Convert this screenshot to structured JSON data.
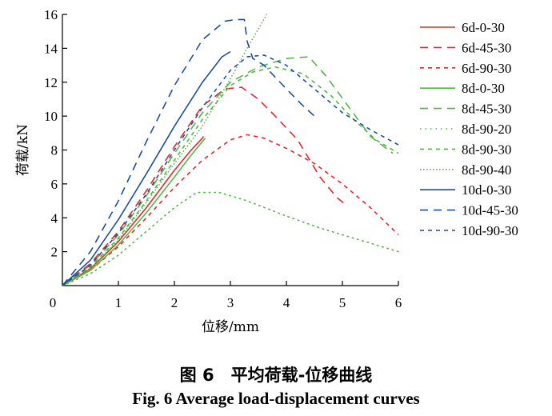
{
  "chart_data": {
    "type": "line",
    "title": "",
    "xlabel": "位移/mm",
    "ylabel": "荷载/kN",
    "xlim": [
      0,
      6
    ],
    "ylim": [
      0,
      16
    ],
    "xticks": [
      0,
      1,
      2,
      3,
      4,
      5,
      6
    ],
    "yticks": [
      2,
      4,
      6,
      8,
      10,
      12,
      14,
      16
    ],
    "legend_position": "right",
    "series": [
      {
        "name": "6d-0-30",
        "color": "#e8262b",
        "dash": "solid",
        "x": [
          0,
          0.5,
          1,
          1.5,
          2,
          2.3,
          2.5,
          2.52
        ],
        "y": [
          0,
          1.0,
          2.6,
          4.6,
          6.8,
          8.0,
          8.7,
          8.8
        ]
      },
      {
        "name": "6d-45-30",
        "color": "#e8262b",
        "dash": "long",
        "x": [
          0,
          0.5,
          1,
          1.5,
          2,
          2.5,
          2.9,
          3.2,
          3.5,
          3.8,
          4.2,
          4.6,
          4.9,
          5.05,
          5.1
        ],
        "y": [
          0,
          1.3,
          3.2,
          5.6,
          8.2,
          10.6,
          11.6,
          11.7,
          11.0,
          10.0,
          8.6,
          6.4,
          5.2,
          4.8,
          4.7
        ]
      },
      {
        "name": "6d-90-30",
        "color": "#e8262b",
        "dash": "short",
        "x": [
          0,
          0.5,
          1,
          1.5,
          2,
          2.5,
          3,
          3.3,
          3.6,
          4,
          4.5,
          5,
          5.5,
          6
        ],
        "y": [
          0,
          0.9,
          2.3,
          4.0,
          5.8,
          7.4,
          8.6,
          8.9,
          8.7,
          8.1,
          7.2,
          6.0,
          4.6,
          3.0
        ]
      },
      {
        "name": "8d-0-30",
        "color": "#55b748",
        "dash": "solid",
        "x": [
          0,
          0.5,
          1,
          1.5,
          2,
          2.3,
          2.5,
          2.55
        ],
        "y": [
          0,
          0.9,
          2.4,
          4.3,
          6.4,
          7.7,
          8.5,
          8.7
        ]
      },
      {
        "name": "8d-45-30",
        "color": "#55b748",
        "dash": "long",
        "x": [
          0,
          0.5,
          1,
          1.5,
          2,
          2.5,
          3,
          3.5,
          4,
          4.4,
          4.7,
          5.1,
          5.5,
          5.9
        ],
        "y": [
          0,
          1.2,
          3.0,
          5.3,
          7.8,
          10.2,
          12.0,
          12.9,
          13.4,
          13.5,
          12.4,
          10.6,
          8.8,
          7.8
        ]
      },
      {
        "name": "8d-90-20",
        "color": "#55b748",
        "dash": "dot",
        "x": [
          0,
          0.5,
          1,
          1.5,
          2,
          2.4,
          2.8,
          3.3,
          4,
          4.6,
          5.2,
          5.6,
          6
        ],
        "y": [
          0,
          0.7,
          1.8,
          3.2,
          4.6,
          5.5,
          5.5,
          5.0,
          4.1,
          3.4,
          2.8,
          2.4,
          2.0
        ]
      },
      {
        "name": "8d-90-30",
        "color": "#55b748",
        "dash": "short",
        "x": [
          0,
          0.5,
          1,
          1.5,
          2,
          2.5,
          3,
          3.4,
          3.8,
          4.3,
          4.8,
          5.2,
          5.6,
          6
        ],
        "y": [
          0,
          1.1,
          2.8,
          5.0,
          7.4,
          9.8,
          11.8,
          12.6,
          12.9,
          12.5,
          11.2,
          9.8,
          8.6,
          7.8
        ]
      },
      {
        "name": "8d-90-40",
        "color": "#55b748",
        "dash": "dense",
        "x": [
          0,
          0.5,
          1,
          1.5,
          2,
          2.5,
          3,
          3.3,
          3.65
        ],
        "y": [
          0,
          1.0,
          2.7,
          4.9,
          7.2,
          9.4,
          12.2,
          14.0,
          16.0
        ]
      },
      {
        "name": "10d-0-30",
        "color": "#1f4e9c",
        "dash": "solid",
        "x": [
          0,
          0.5,
          1,
          1.5,
          2,
          2.5,
          2.85,
          3.0
        ],
        "y": [
          0,
          1.5,
          3.9,
          6.6,
          9.4,
          12.0,
          13.5,
          13.8
        ]
      },
      {
        "name": "10d-45-30",
        "color": "#1f4e9c",
        "dash": "long",
        "x": [
          0,
          0.5,
          1,
          1.5,
          2,
          2.5,
          2.9,
          3.1,
          3.25,
          3.3,
          3.4,
          3.6,
          4,
          4.3,
          4.5
        ],
        "y": [
          0,
          2.0,
          5.0,
          8.5,
          11.8,
          14.5,
          15.6,
          15.7,
          15.7,
          14.4,
          13.4,
          13.0,
          11.6,
          10.6,
          10.0
        ]
      },
      {
        "name": "10d-90-30",
        "color": "#1f4e9c",
        "dash": "short",
        "x": [
          0,
          0.5,
          1,
          1.5,
          2,
          2.5,
          3,
          3.3,
          3.6,
          4,
          4.5,
          5,
          5.5,
          6
        ],
        "y": [
          0,
          1.2,
          3.1,
          5.4,
          8.0,
          10.5,
          12.7,
          13.5,
          13.6,
          13.0,
          11.6,
          10.2,
          9.2,
          8.3
        ]
      }
    ]
  },
  "captions": {
    "cn": "图 6　平均荷载-位移曲线",
    "en": "Fig.  6    Average load-displacement curves"
  }
}
